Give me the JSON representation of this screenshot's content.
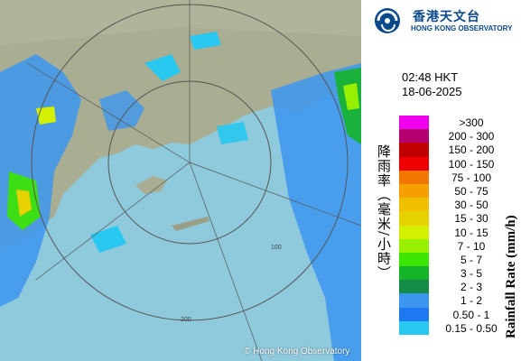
{
  "map": {
    "copyright": "© Hong Kong Observatory",
    "range_labels": [
      "100",
      "200"
    ],
    "colors": {
      "sea": "#8fc9dc",
      "land": "#a9ad92"
    }
  },
  "header": {
    "logo_zh": "香港天文台",
    "logo_en": "HONG KONG OBSERVATORY",
    "time": "02:48 HKT",
    "date": "18-06-2025"
  },
  "legend": {
    "title_zh": "降雨率（毫米/小時）",
    "title_en": "Rainfall Rate (mm/h)",
    "items": [
      {
        "label": ">300",
        "color": "#ee00ee"
      },
      {
        "label": "200 - 300",
        "color": "#b4006e"
      },
      {
        "label": "150 - 200",
        "color": "#c00000"
      },
      {
        "label": "100 - 150",
        "color": "#ee0000"
      },
      {
        "label": "75 - 100",
        "color": "#f07800"
      },
      {
        "label": "50 - 75",
        "color": "#f5a000"
      },
      {
        "label": "30 - 50",
        "color": "#f0c000"
      },
      {
        "label": "15 - 30",
        "color": "#e6d200"
      },
      {
        "label": "10 - 15",
        "color": "#d2f000"
      },
      {
        "label": "7 - 10",
        "color": "#96f000"
      },
      {
        "label": "5 - 7",
        "color": "#3ce600"
      },
      {
        "label": "3 - 5",
        "color": "#14b428"
      },
      {
        "label": "2 - 3",
        "color": "#148c46"
      },
      {
        "label": "1 - 2",
        "color": "#3c96f0"
      },
      {
        "label": "0.50 - 1",
        "color": "#1e78f0"
      },
      {
        "label": "0.15 - 0.50",
        "color": "#28c8f0"
      }
    ]
  }
}
